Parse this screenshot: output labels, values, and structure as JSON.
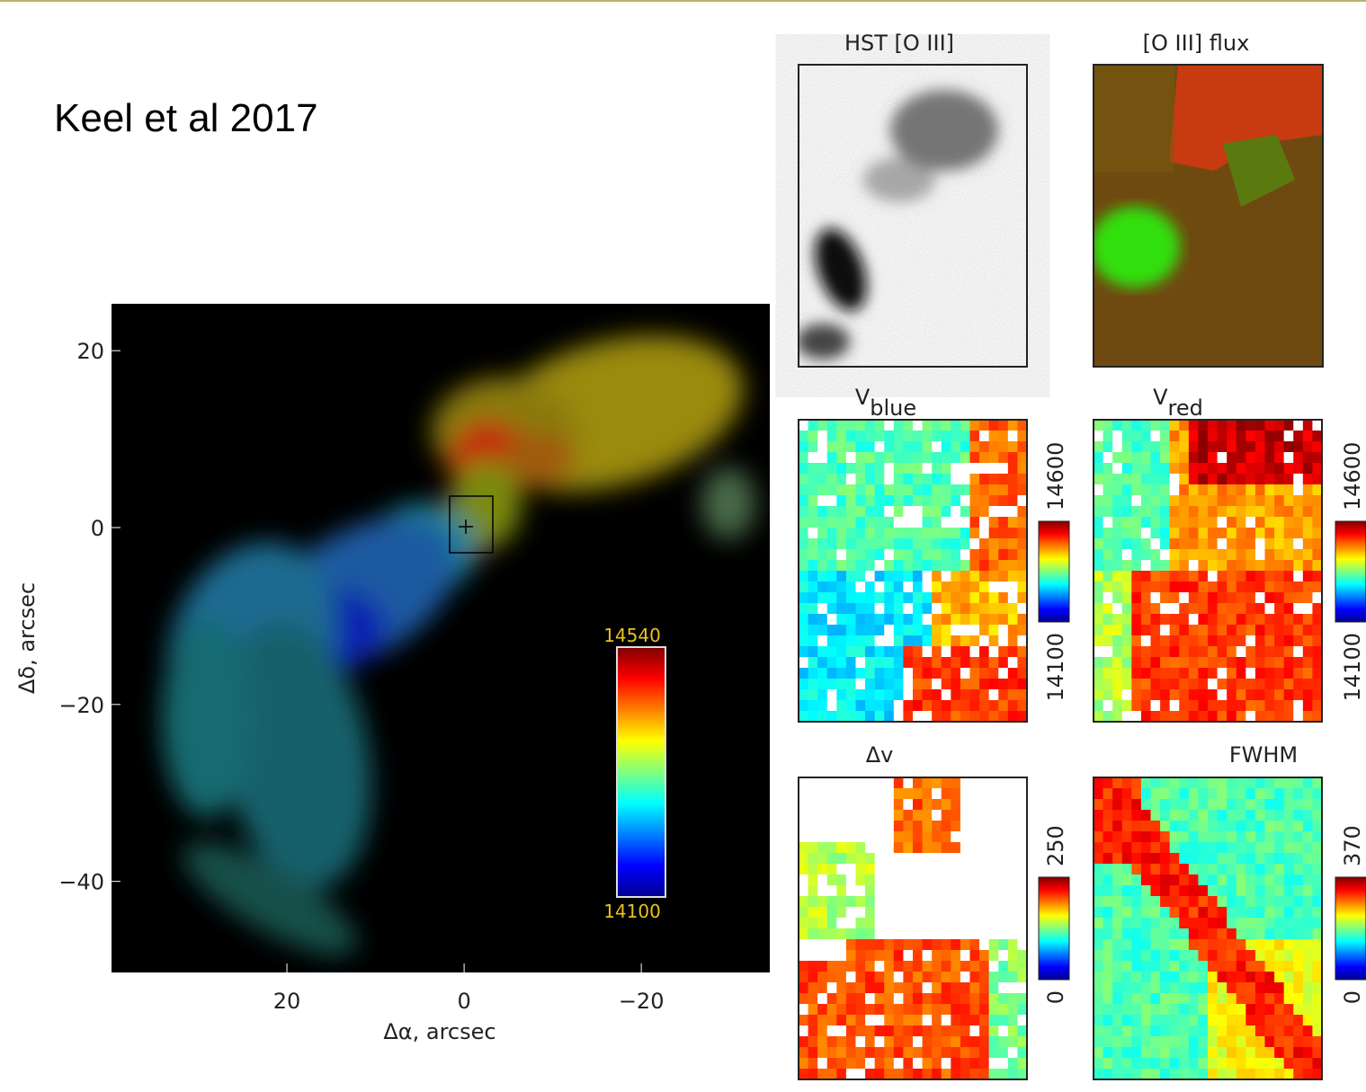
{
  "slide": {
    "title": "Keel et al 2017"
  },
  "main_panel": {
    "xlabel": "Δα, arcsec",
    "ylabel": "Δδ, arcsec",
    "xlim": [
      39.8,
      -34.5
    ],
    "ylim": [
      -50.3,
      25.3
    ],
    "xticks": [
      20,
      0,
      {
        "value": -20,
        "label": "−20"
      }
    ],
    "yticks": [
      20,
      0,
      {
        "value": -20,
        "label": "−20"
      },
      {
        "value": -40,
        "label": "−40"
      }
    ],
    "colorbar": {
      "max": 14540,
      "min": 14100
    }
  },
  "panels": [
    {
      "title": "HST [O III]"
    },
    {
      "title": "[O III] flux"
    },
    {
      "title": "V",
      "subscript": "blue",
      "colorbar": {
        "max": 14600,
        "min": 14100
      }
    },
    {
      "title": "V",
      "subscript": "red",
      "colorbar": {
        "max": 14600,
        "min": 14100
      }
    },
    {
      "title": "Δv",
      "colorbar": {
        "max": 250,
        "min": 0
      }
    },
    {
      "title": "FWHM",
      "colorbar": {
        "max": 370,
        "min": 0
      }
    }
  ]
}
